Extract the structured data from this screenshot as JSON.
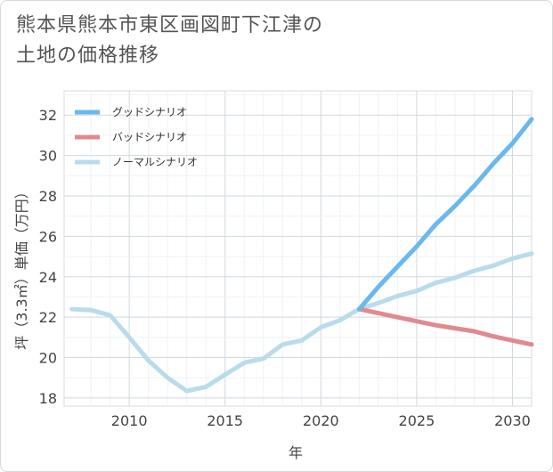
{
  "title": {
    "line1": "熊本県熊本市東区画図町下江津の",
    "line2": "土地の価格推移"
  },
  "chart_data": {
    "type": "line",
    "xlabel": "年",
    "ylabel": "坪（3.3㎡）単価（万円）",
    "xlim": [
      2006.6,
      2031
    ],
    "ylim": [
      17.6,
      33.2
    ],
    "xticks": [
      2010,
      2015,
      2020,
      2025,
      2030
    ],
    "yticks": [
      18,
      20,
      22,
      24,
      26,
      28,
      30,
      32
    ],
    "grid": true,
    "legend_placement": "top-left",
    "series": [
      {
        "name": "グッドシナリオ",
        "color": "#6ab8ec",
        "x": [
          2022,
          2023,
          2024,
          2025,
          2026,
          2027,
          2028,
          2029,
          2030,
          2031
        ],
        "values": [
          22.4,
          23.5,
          24.5,
          25.5,
          26.6,
          27.5,
          28.5,
          29.6,
          30.6,
          31.8
        ]
      },
      {
        "name": "バッドシナリオ",
        "color": "#e08a90",
        "x": [
          2022,
          2023,
          2024,
          2025,
          2026,
          2027,
          2028,
          2029,
          2030,
          2031
        ],
        "values": [
          22.4,
          22.2,
          22.0,
          21.8,
          21.6,
          21.45,
          21.3,
          21.05,
          20.85,
          20.65
        ]
      },
      {
        "name": "ノーマルシナリオ",
        "color": "#b8dcec",
        "x": [
          2007,
          2008,
          2009,
          2010,
          2011,
          2012,
          2013,
          2014,
          2015,
          2016,
          2017,
          2018,
          2019,
          2020,
          2021,
          2022,
          2023,
          2024,
          2025,
          2026,
          2027,
          2028,
          2029,
          2030,
          2031
        ],
        "values": [
          22.4,
          22.35,
          22.1,
          21.0,
          19.85,
          19.0,
          18.35,
          18.55,
          19.15,
          19.75,
          19.95,
          20.65,
          20.85,
          21.5,
          21.85,
          22.4,
          22.7,
          23.05,
          23.3,
          23.7,
          23.95,
          24.3,
          24.55,
          24.9,
          25.15
        ]
      }
    ]
  }
}
